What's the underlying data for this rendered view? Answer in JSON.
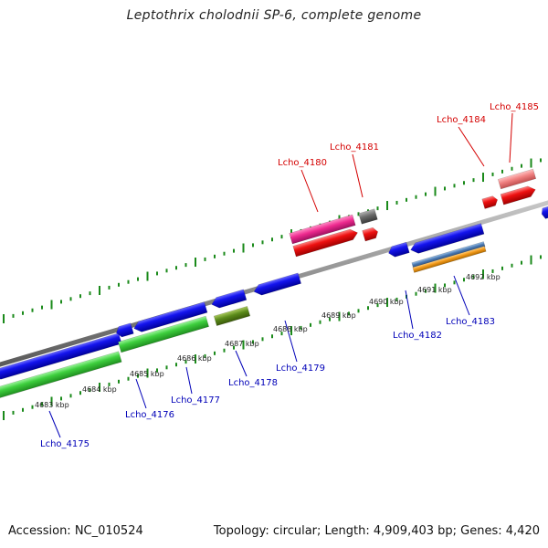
{
  "title": "Leptothrix cholodnii SP-6, complete genome",
  "footer": {
    "accession": "Accession: NC_010524",
    "topology": "Topology: circular; Length: 4,909,403 bp; Genes: 4,420"
  },
  "colors": {
    "backbone": "#8c8c8c",
    "forward_label": "#d40000",
    "reverse_label": "#0000b8",
    "tick": "#1a8a1a",
    "cds_blue": "#0a0adc",
    "cds_green": "#3ecf3e",
    "cds_red": "#ee1111",
    "cds_pink": "#ee2a8f",
    "cds_gray": "#6a6a6a",
    "cds_olive": "#5a8a1a",
    "cds_salmon": "#f08080",
    "cds_orange": "#f39a1a",
    "cds_steel": "#4a78b0"
  },
  "scale_labels": [
    "4683 kbp",
    "4684 kbp",
    "4685 kbp",
    "4686 kbp",
    "4687 kbp",
    "4688 kbp",
    "4689 kbp",
    "4690 kbp",
    "4691 kbp",
    "4692 kbp"
  ],
  "forward_genes": [
    "Lcho_4180",
    "Lcho_4181",
    "Lcho_4184",
    "Lcho_4185"
  ],
  "reverse_genes": [
    "Lcho_4175",
    "Lcho_4176",
    "Lcho_4177",
    "Lcho_4178",
    "Lcho_4179",
    "Lcho_4182",
    "Lcho_4183"
  ]
}
